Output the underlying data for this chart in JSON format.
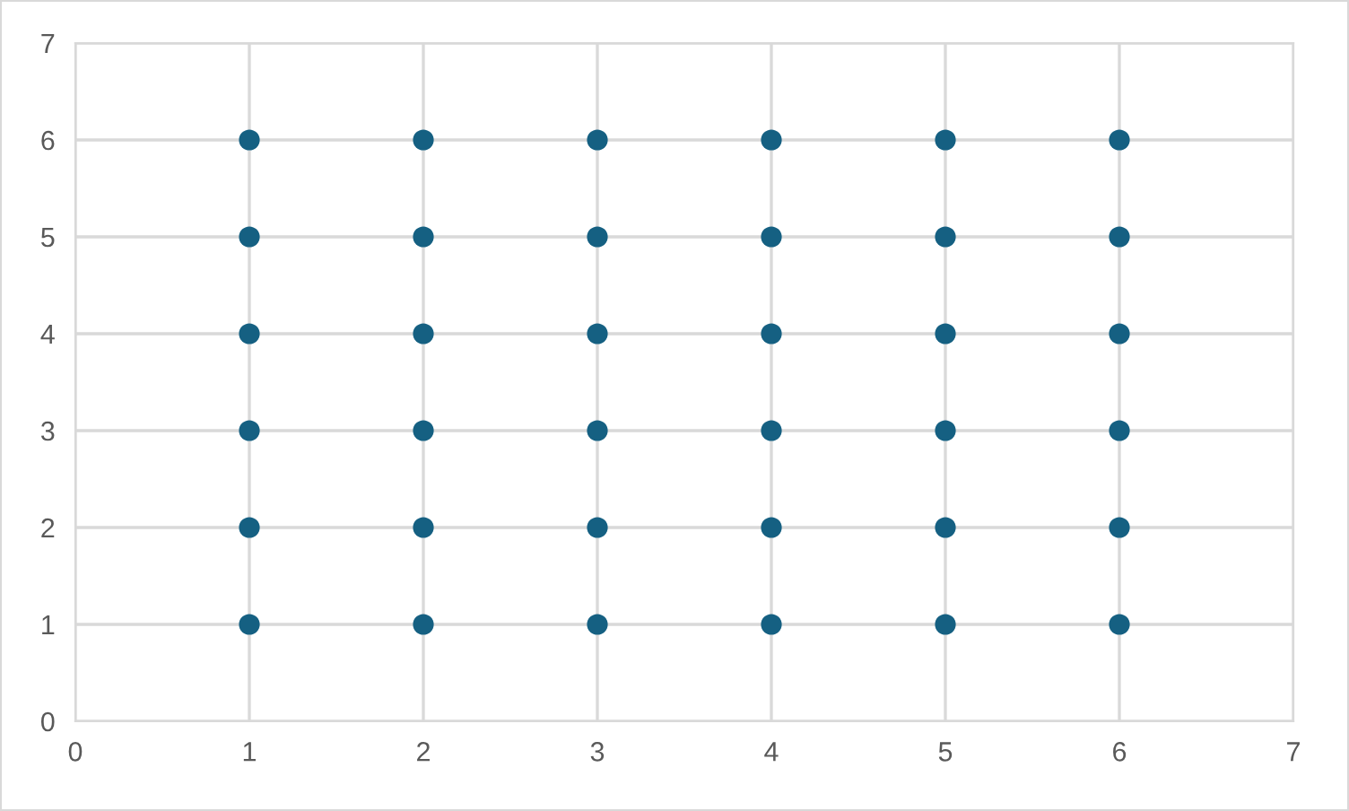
{
  "chart_data": {
    "type": "scatter",
    "series": [
      {
        "color": "#156082",
        "x": [
          1,
          1,
          1,
          1,
          1,
          1,
          2,
          2,
          2,
          2,
          2,
          2,
          3,
          3,
          3,
          3,
          3,
          3,
          4,
          4,
          4,
          4,
          4,
          4,
          5,
          5,
          5,
          5,
          5,
          5,
          6,
          6,
          6,
          6,
          6,
          6
        ],
        "values": [
          1,
          2,
          3,
          4,
          5,
          6,
          1,
          2,
          3,
          4,
          5,
          6,
          1,
          2,
          3,
          4,
          5,
          6,
          1,
          2,
          3,
          4,
          5,
          6,
          1,
          2,
          3,
          4,
          5,
          6,
          1,
          2,
          3,
          4,
          5,
          6
        ]
      }
    ],
    "xlim": [
      0,
      7
    ],
    "ylim": [
      0,
      7
    ],
    "xticks": [
      0,
      1,
      2,
      3,
      4,
      5,
      6,
      7
    ],
    "yticks": [
      0,
      1,
      2,
      3,
      4,
      5,
      6,
      7
    ],
    "grid": true,
    "marker": "circle",
    "legend": false
  }
}
